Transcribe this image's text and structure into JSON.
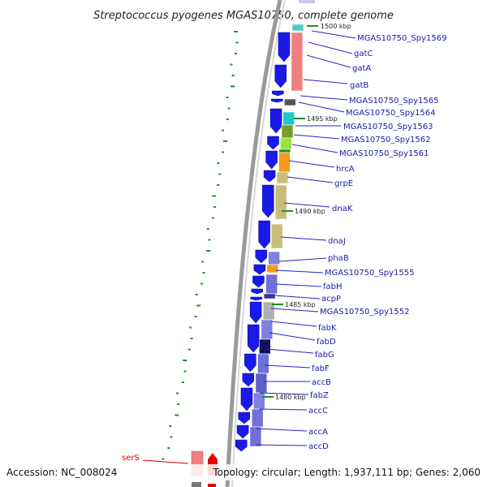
{
  "title": "Streptococcus pyogenes MGAS10750, complete genome",
  "footer": {
    "accession": "Accession: NC_008024",
    "summary": "Topology: circular; Length: 1,937,111 bp; Genes: 2,060"
  },
  "colors": {
    "gene_label": "#1a1aa8",
    "rna_label": "#e00000",
    "cds_arrow": "#1a1ae6",
    "backbone": "#9a9a9a"
  },
  "ticks": [
    {
      "label": "1500 kbp",
      "kbp": 1500
    },
    {
      "label": "1495 kbp",
      "kbp": 1495
    },
    {
      "label": "1490 kbp",
      "kbp": 1490
    },
    {
      "label": "1485 kbp",
      "kbp": 1485
    },
    {
      "label": "1480 kbp",
      "kbp": 1480
    }
  ],
  "genes": [
    {
      "label": "MGAS10750_Spy1569",
      "cog_color": "#4ec9c9"
    },
    {
      "label": "gatC",
      "cog_color": "#f08080"
    },
    {
      "label": "gatA",
      "cog_color": "#f08080"
    },
    {
      "label": "gatB",
      "cog_color": "#f08080"
    },
    {
      "label": "MGAS10750_Spy1565",
      "cog_color": "#555555"
    },
    {
      "label": "MGAS10750_Spy1564",
      "cog_color": "#20c8c8"
    },
    {
      "label": "MGAS10750_Spy1563",
      "cog_color": "#7a9a2a"
    },
    {
      "label": "MGAS10750_Spy1562",
      "cog_color": "#9ae040"
    },
    {
      "label": "MGAS10750_Spy1561",
      "cog_color": "#2a8a2a"
    },
    {
      "label": "hrcA",
      "cog_color": "#f49a20"
    },
    {
      "label": "grpE",
      "cog_color": "#c8be78"
    },
    {
      "label": "dnaK",
      "cog_color": "#c8be78"
    },
    {
      "label": "dnaJ",
      "cog_color": "#c8be78"
    },
    {
      "label": "phaB",
      "cog_color": "#8080e0"
    },
    {
      "label": "MGAS10750_Spy1555",
      "cog_color": "#f49a20"
    },
    {
      "label": "fabH",
      "cog_color": "#7070d8"
    },
    {
      "label": "acpP",
      "cog_color": "#333399"
    },
    {
      "label": "MGAS10750_Spy1552",
      "cog_color": "#b0b0b0"
    },
    {
      "label": "fabK",
      "cog_color": "#8080e0"
    },
    {
      "label": "fabD",
      "cog_color": "#101060"
    },
    {
      "label": "fabG",
      "cog_color": "#7070d8"
    },
    {
      "label": "fabF",
      "cog_color": "#6060c8"
    },
    {
      "label": "accB",
      "cog_color": "#8080e0"
    },
    {
      "label": "fabZ",
      "cog_color": "#8080e0"
    },
    {
      "label": "accC",
      "cog_color": "#7070d8"
    },
    {
      "label": "accA",
      "cog_color": "#7070d8"
    },
    {
      "label": "accD",
      "cog_color": "#7070d8"
    }
  ],
  "rna_features": [
    {
      "label": "serS"
    }
  ]
}
